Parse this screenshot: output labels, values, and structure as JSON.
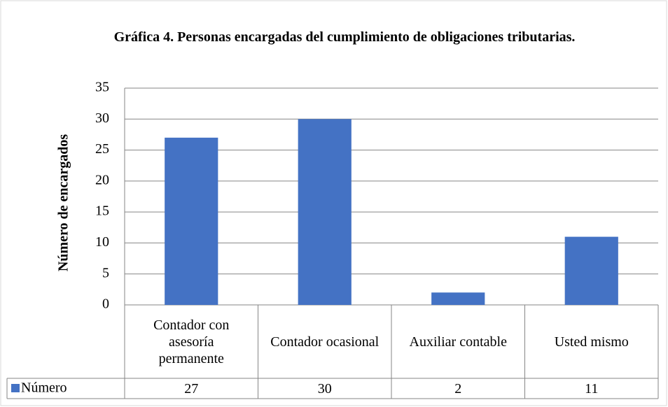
{
  "chart_data": {
    "type": "bar",
    "title": "Gráfica 4. Personas encargadas del cumplimiento de obligaciones tributarias.",
    "ylabel": "Número de encargados",
    "categories": [
      "Contador con asesoría permanente",
      "Contador ocasional",
      "Auxiliar contable",
      "Usted mismo"
    ],
    "series": [
      {
        "name": "Número",
        "color": "#4472c4",
        "values": [
          27,
          30,
          2,
          11
        ]
      }
    ],
    "ylim": [
      0,
      35
    ],
    "yticks": [
      0,
      5,
      10,
      15,
      20,
      25,
      30,
      35
    ],
    "grid": true
  }
}
